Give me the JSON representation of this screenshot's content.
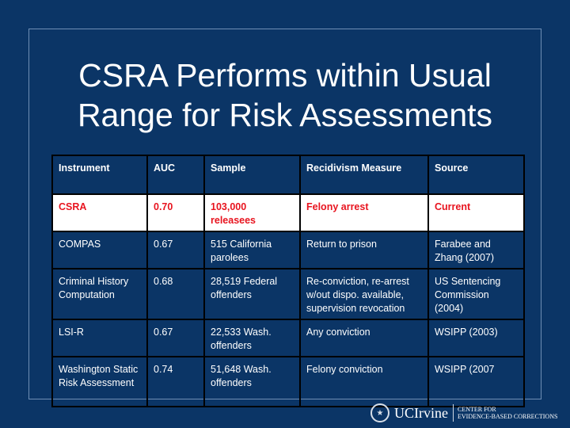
{
  "slide": {
    "title_line1": "CSRA Performs within Usual",
    "title_line2": "Range for Risk Assessments"
  },
  "table": {
    "headers": [
      "Instrument",
      "AUC",
      "Sample",
      "Recidivism Measure",
      "Source"
    ],
    "rows": [
      [
        "CSRA",
        "0.70",
        "103,000 releasees",
        "Felony arrest",
        "Current"
      ],
      [
        "COMPAS",
        "0.67",
        "515 California parolees",
        "Return to prison",
        "Farabee and Zhang (2007)"
      ],
      [
        "Criminal History Computation",
        "0.68",
        "28,519 Federal offenders",
        "Re-conviction, re-arrest w/out dispo. available, supervision revocation",
        "US Sentencing Commission (2004)"
      ],
      [
        "LSI-R",
        "0.67",
        "22,533 Wash. offenders",
        "Any conviction",
        "WSIPP (2003)"
      ],
      [
        "Washington Static Risk Assessment",
        "0.74",
        "51,648 Wash. offenders",
        "Felony conviction",
        "WSIPP (2007"
      ]
    ]
  },
  "footer": {
    "seal_icon": "university-seal-icon",
    "brand": "UCIrvine",
    "center_line1": "Center for",
    "center_line2": "Evidence-Based Corrections"
  },
  "colors": {
    "background": "#0b3566",
    "highlight_text": "#e8141f"
  }
}
